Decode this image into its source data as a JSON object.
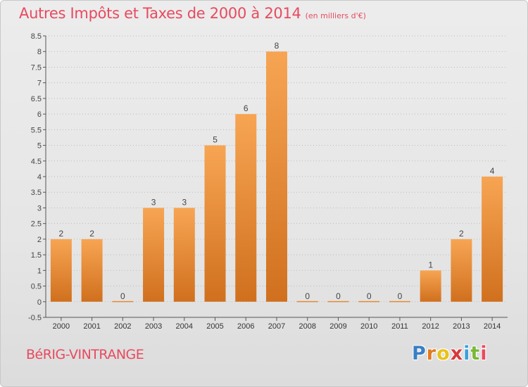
{
  "title": "Autres Impôts et Taxes de 2000 à 2014",
  "subtitle": "(en milliers d'€)",
  "commune": "BéRIG-VINTRANGE",
  "logo": {
    "letters": [
      "P",
      "r",
      "o",
      "x",
      "i",
      "t",
      "i"
    ],
    "colors": [
      "#3a7fc4",
      "#e07a1f",
      "#e8c21a",
      "#d83a3a",
      "#3aa0d8",
      "#7ab83a",
      "#e84a5f"
    ]
  },
  "colors": {
    "bar_top": "#f7a553",
    "bar_bottom": "#d0701e",
    "axis": "#555555",
    "grid": "#bbbbbb"
  },
  "chart_data": {
    "type": "bar",
    "categories": [
      "2000",
      "2001",
      "2002",
      "2003",
      "2004",
      "2005",
      "2006",
      "2007",
      "2008",
      "2009",
      "2010",
      "2011",
      "2012",
      "2013",
      "2014"
    ],
    "values": [
      2,
      2,
      0,
      3,
      3,
      5,
      6,
      8,
      0,
      0,
      0,
      0,
      1,
      2,
      4
    ],
    "data_labels": [
      "2",
      "2",
      "0",
      "3",
      "3",
      "5",
      "6",
      "8",
      "0",
      "0",
      "0",
      "0",
      "1",
      "2",
      "4"
    ],
    "yticks": [
      "-0.5",
      "0",
      "0.5",
      "1",
      "1.5",
      "2",
      "2.5",
      "3",
      "3.5",
      "4",
      "4.5",
      "5",
      "5.5",
      "6",
      "6.5",
      "7",
      "7.5",
      "8",
      "8.5"
    ],
    "ylim": [
      -0.5,
      8.5
    ],
    "grid": true
  }
}
